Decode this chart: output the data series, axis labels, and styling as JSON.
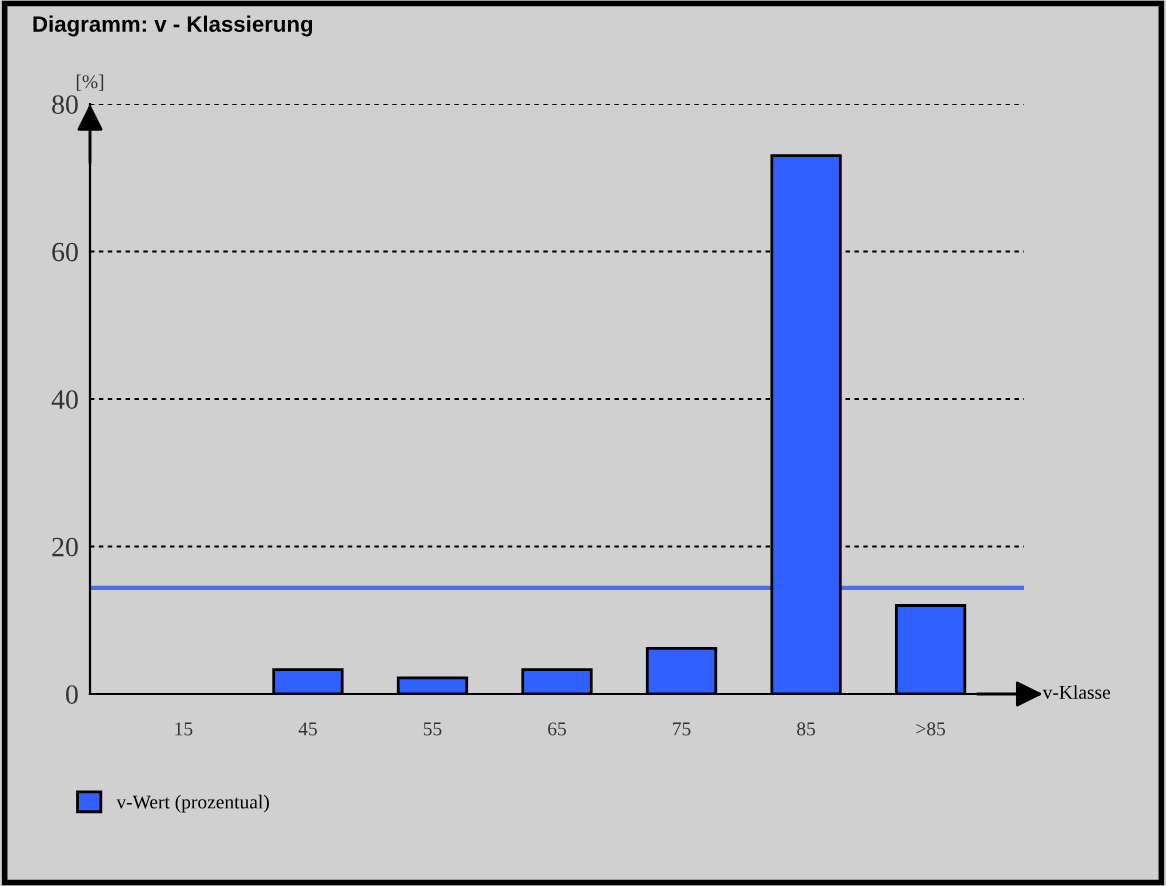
{
  "chart_data": {
    "type": "bar",
    "title": "Diagramm: v - Klassierung",
    "xlabel": "v-Klasse",
    "ylabel": "[%]",
    "categories": [
      "15",
      "45",
      "55",
      "65",
      "75",
      "85",
      ">85"
    ],
    "series": [
      {
        "name": "v-Wert (prozentual)",
        "color": "#3060ff",
        "values": [
          0,
          3.3,
          2.2,
          3.3,
          6.2,
          73,
          12
        ]
      }
    ],
    "ylim": [
      0,
      80
    ],
    "yticks": [
      0,
      20,
      40,
      60,
      80
    ],
    "grid": "y",
    "legend": "bottom left",
    "ref_lines": [
      {
        "axis": "y",
        "value": 14.4,
        "color": "#4a70e8",
        "line_style": "solid"
      }
    ]
  }
}
